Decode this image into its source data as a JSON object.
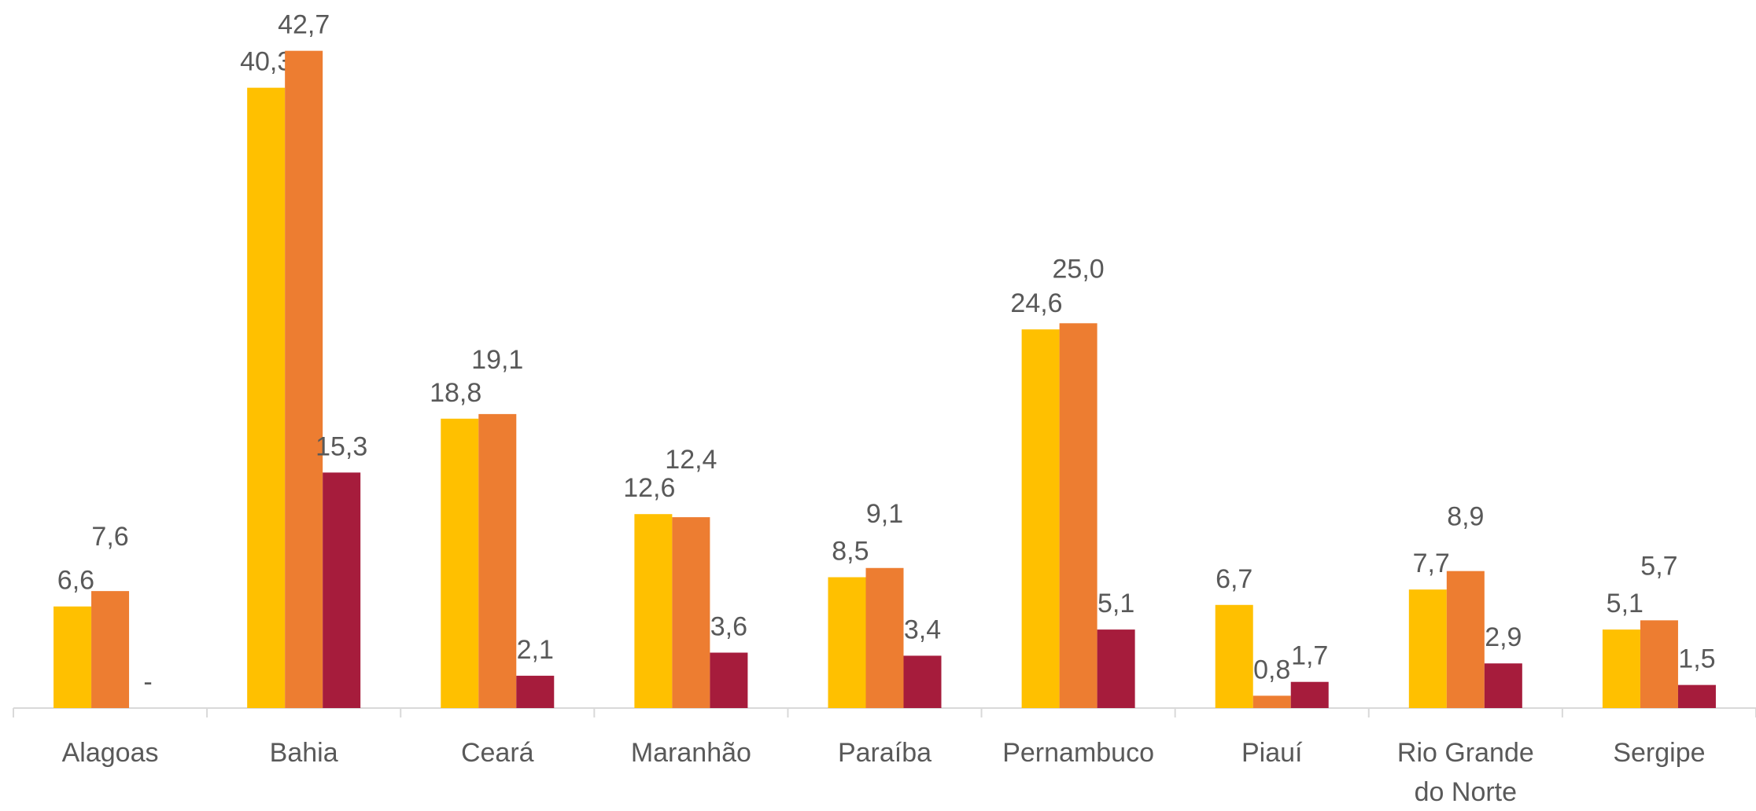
{
  "chart_data": {
    "type": "bar",
    "categories": [
      "Alagoas",
      "Bahia",
      "Ceará",
      "Maranhão",
      "Paraíba",
      "Pernambuco",
      "Piauí",
      "Rio Grande do Norte",
      "Sergipe"
    ],
    "series": [
      {
        "color": "#FFC000",
        "values": [
          6.6,
          40.3,
          18.8,
          12.6,
          8.5,
          24.6,
          6.7,
          7.7,
          5.1
        ],
        "value_labels": [
          "6,6",
          "40,3",
          "18,8",
          "12,6",
          "8,5",
          "24,6",
          "6,7",
          "7,7",
          "5,1"
        ]
      },
      {
        "color": "#ED7D31",
        "values": [
          7.6,
          42.7,
          19.1,
          12.4,
          9.1,
          25.0,
          0.8,
          8.9,
          5.7
        ],
        "value_labels": [
          "7,6",
          "42,7",
          "19,1",
          "12,4",
          "9,1",
          "25,0",
          "0,8",
          "8,9",
          "5,7"
        ]
      },
      {
        "color": "#A61C3C",
        "values": [
          0,
          15.3,
          2.1,
          3.6,
          3.4,
          5.1,
          1.7,
          2.9,
          1.5
        ],
        "value_labels": [
          "-",
          "15,3",
          "2,1",
          "3,6",
          "3,4",
          "5,1",
          "1,7",
          "2,9",
          "1,5"
        ]
      }
    ],
    "ylim": [
      0,
      46
    ]
  }
}
